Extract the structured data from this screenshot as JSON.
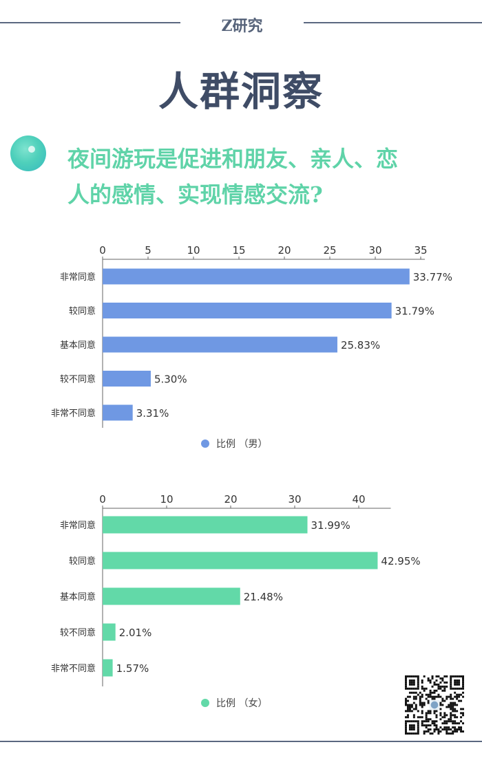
{
  "header": {
    "brand": "Z研究"
  },
  "page_title": "人群洞察",
  "question": {
    "line1": "夜间游玩是促进和朋友、亲人、恋",
    "line2": "人的感情、实现情感交流?"
  },
  "colors": {
    "male": "#6f98e3",
    "female": "#62d9a8",
    "title": "#3f4c66",
    "question": "#5fd3a8"
  },
  "chart_data": [
    {
      "type": "bar",
      "orientation": "horizontal",
      "categories": [
        "非常同意",
        "较同意",
        "基本同意",
        "较不同意",
        "非常不同意"
      ],
      "series": [
        {
          "name": "比例 （男）",
          "values": [
            33.77,
            31.79,
            25.83,
            5.3,
            3.31
          ]
        }
      ],
      "data_labels": [
        "33.77%",
        "31.79%",
        "25.83%",
        "5.30%",
        "3.31%"
      ],
      "xlim": [
        0,
        35
      ],
      "xticks": [
        "0",
        "5",
        "10",
        "15",
        "20",
        "25",
        "30",
        "35"
      ],
      "axis_position": "top",
      "legend_position": "bottom"
    },
    {
      "type": "bar",
      "orientation": "horizontal",
      "categories": [
        "非常同意",
        "较同意",
        "基本同意",
        "较不同意",
        "非常不同意"
      ],
      "series": [
        {
          "name": "比例 （女）",
          "values": [
            31.99,
            42.95,
            21.48,
            2.01,
            1.57
          ]
        }
      ],
      "data_labels": [
        "31.99%",
        "42.95%",
        "21.48%",
        "2.01%",
        "1.57%"
      ],
      "xlim": [
        0,
        45
      ],
      "xticks": [
        "0",
        "10",
        "20",
        "30",
        "40"
      ],
      "axis_position": "top",
      "legend_position": "bottom"
    }
  ],
  "qr_code": "qr-code-icon"
}
